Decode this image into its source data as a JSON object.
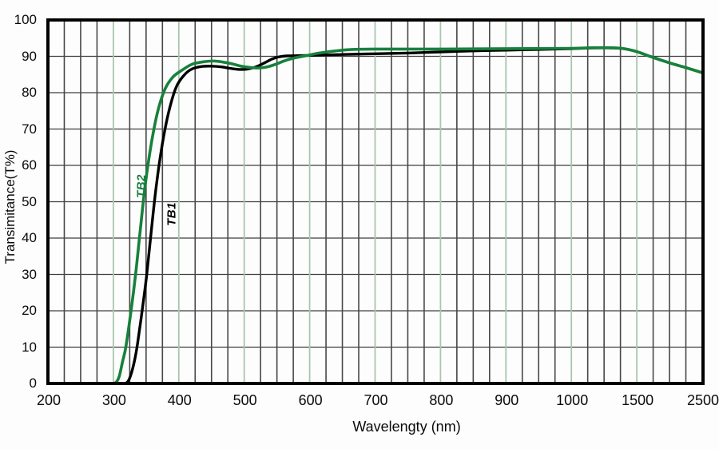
{
  "chart_data": {
    "type": "line",
    "title": "",
    "xlabel": "Wavelengty (nm)",
    "ylabel": "Transimitance(T%)",
    "x_tick_labels": [
      "200",
      "300",
      "400",
      "500",
      "600",
      "700",
      "800",
      "900",
      "1000",
      "1500",
      "2500"
    ],
    "x_tick_values": [
      200,
      300,
      400,
      500,
      600,
      700,
      800,
      900,
      1000,
      1500,
      2500
    ],
    "x_scale_note": "labeled ticks are equally spaced even though wavelength steps are non-linear (100 nm steps to 1000, then 500, then 1000)",
    "y_tick_labels": [
      "0",
      "10",
      "20",
      "30",
      "40",
      "50",
      "60",
      "70",
      "80",
      "90",
      "100"
    ],
    "y_tick_values": [
      0,
      10,
      20,
      30,
      40,
      50,
      60,
      70,
      80,
      90,
      100
    ],
    "ylim": [
      0,
      100
    ],
    "grid": {
      "horizontal_lines_every_pct": 10,
      "vertical_minor_lines_between_majors": 3,
      "major_vertical_color": "#a9c6af",
      "minor_vertical_color": "#474747",
      "horizontal_color": "#3f3f3f"
    },
    "legend_position": "labels drawn along curves inside plot",
    "series": [
      {
        "name": "TB1",
        "color": "#000000",
        "points": [
          [
            314,
            0
          ],
          [
            321,
            0.3
          ],
          [
            326,
            2
          ],
          [
            332,
            6
          ],
          [
            337,
            11
          ],
          [
            344,
            20
          ],
          [
            351,
            30
          ],
          [
            358,
            42
          ],
          [
            366,
            55
          ],
          [
            375,
            66
          ],
          [
            385,
            75
          ],
          [
            396,
            81.5
          ],
          [
            408,
            84.8
          ],
          [
            420,
            86.5
          ],
          [
            435,
            87.2
          ],
          [
            450,
            87.3
          ],
          [
            465,
            87.1
          ],
          [
            478,
            86.7
          ],
          [
            492,
            86.4
          ],
          [
            505,
            86.5
          ],
          [
            518,
            87.1
          ],
          [
            530,
            88.1
          ],
          [
            542,
            89.2
          ],
          [
            552,
            89.8
          ],
          [
            565,
            90.1
          ],
          [
            585,
            90.2
          ],
          [
            610,
            90.3
          ],
          [
            650,
            90.5
          ],
          [
            700,
            90.7
          ],
          [
            750,
            90.9
          ],
          [
            800,
            91.2
          ],
          [
            850,
            91.5
          ],
          [
            900,
            91.7
          ],
          [
            950,
            91.9
          ],
          [
            1000,
            92.1
          ],
          [
            1150,
            92.3
          ],
          [
            1300,
            92.3
          ],
          [
            1400,
            92.1
          ],
          [
            1500,
            91.3
          ],
          [
            1700,
            90.0
          ],
          [
            2000,
            88.2
          ],
          [
            2250,
            86.9
          ],
          [
            2500,
            85.5
          ]
        ]
      },
      {
        "name": "TB2",
        "color": "#17813c",
        "points": [
          [
            297,
            0
          ],
          [
            304,
            0.3
          ],
          [
            309,
            2
          ],
          [
            314,
            6
          ],
          [
            319,
            10
          ],
          [
            327,
            20
          ],
          [
            334,
            30
          ],
          [
            341,
            42
          ],
          [
            349,
            55
          ],
          [
            358,
            66
          ],
          [
            368,
            75
          ],
          [
            379,
            81
          ],
          [
            391,
            84.3
          ],
          [
            405,
            86.2
          ],
          [
            420,
            87.8
          ],
          [
            438,
            88.5
          ],
          [
            455,
            88.7
          ],
          [
            468,
            88.4
          ],
          [
            480,
            88.0
          ],
          [
            495,
            87.3
          ],
          [
            510,
            86.9
          ],
          [
            522,
            86.8
          ],
          [
            535,
            87.1
          ],
          [
            548,
            87.8
          ],
          [
            562,
            88.8
          ],
          [
            578,
            89.6
          ],
          [
            595,
            90.2
          ],
          [
            615,
            90.9
          ],
          [
            640,
            91.5
          ],
          [
            665,
            91.9
          ],
          [
            700,
            92.0
          ],
          [
            800,
            92.0
          ],
          [
            900,
            92.1
          ],
          [
            1000,
            92.2
          ],
          [
            1150,
            92.35
          ],
          [
            1300,
            92.35
          ],
          [
            1400,
            92.1
          ],
          [
            1500,
            91.3
          ],
          [
            1700,
            90.0
          ],
          [
            2000,
            88.2
          ],
          [
            2250,
            86.9
          ],
          [
            2500,
            85.5
          ]
        ]
      }
    ]
  }
}
